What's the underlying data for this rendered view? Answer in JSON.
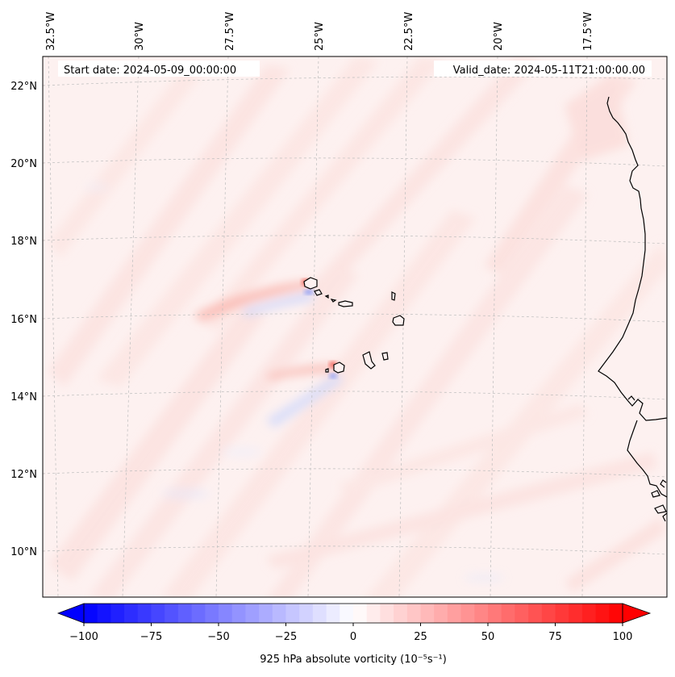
{
  "map": {
    "header": {
      "start_date": "Start date: 2024-05-09_00:00:00",
      "valid_date": "Valid_date: 2024-05-11T21:00:00.00"
    },
    "lon_labels": [
      "32.5°W",
      "30°W",
      "27.5°W",
      "25°W",
      "22.5°W",
      "20°W",
      "17.5°W"
    ],
    "lat_labels": [
      "22°N",
      "20°N",
      "18°N",
      "16°N",
      "14°N",
      "12°N",
      "10°N"
    ],
    "colorbar": {
      "ticks": [
        "−100",
        "−75",
        "−50",
        "−25",
        "0",
        "25",
        "50",
        "75",
        "100"
      ],
      "min": -100,
      "max": 100,
      "levels": 41,
      "label": "925 hPa absolute vorticity (10⁻⁵s⁻¹)",
      "colors": {
        "neg": "#0000ff",
        "mid": "#ffffff",
        "pos": "#ff0000"
      }
    },
    "features": [
      "cape-verde-islands",
      "west-africa-coastline"
    ]
  }
}
